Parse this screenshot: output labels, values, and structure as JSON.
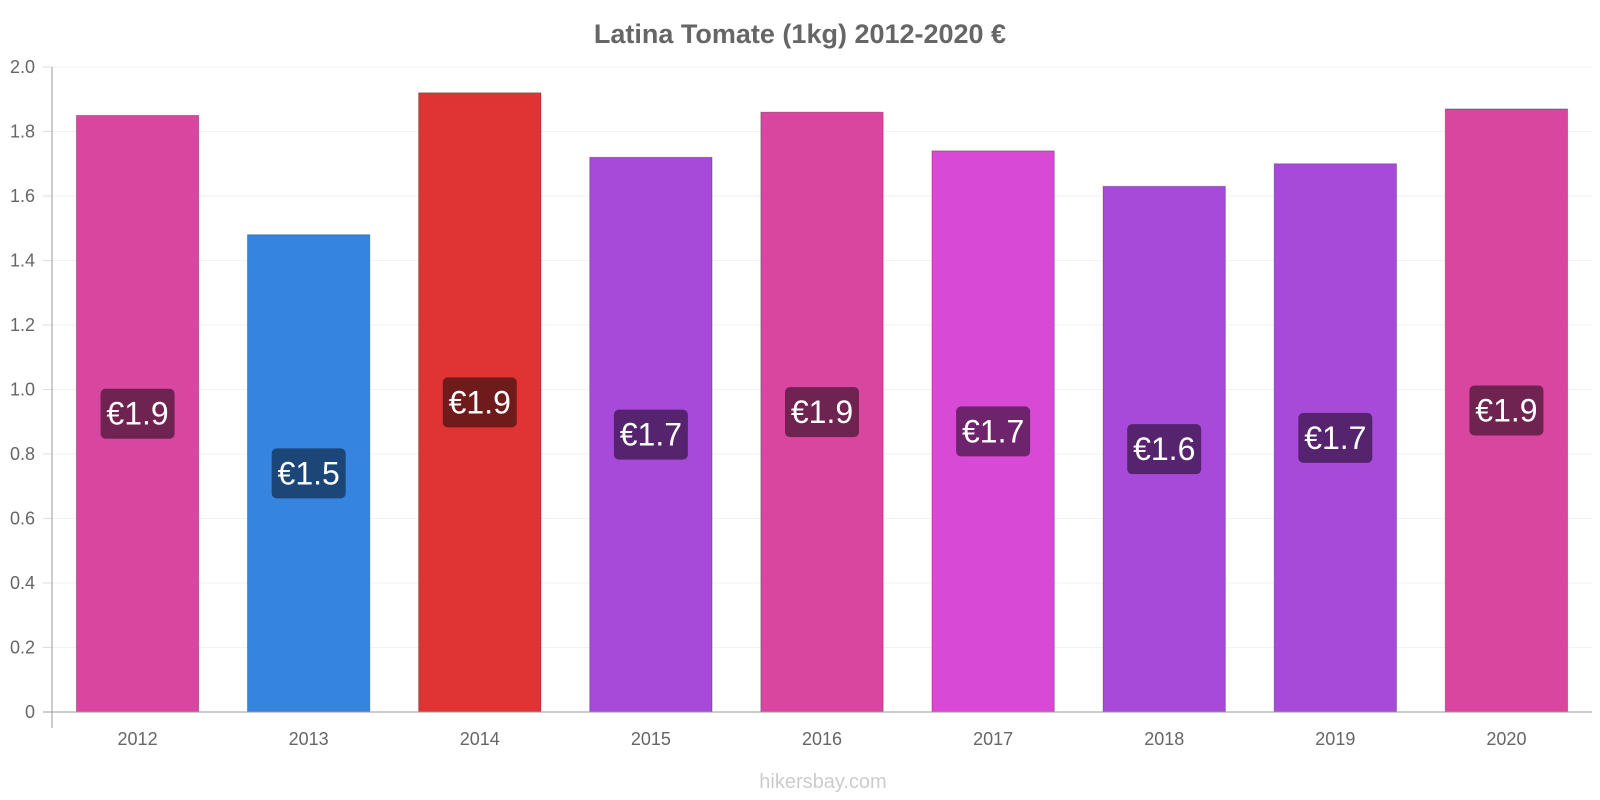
{
  "chart_data": {
    "type": "bar",
    "title": "Latina Tomate (1kg) 2012-2020 €",
    "xlabel": "",
    "ylabel": "",
    "categories": [
      "2012",
      "2013",
      "2014",
      "2015",
      "2016",
      "2017",
      "2018",
      "2019",
      "2020"
    ],
    "values": [
      1.85,
      1.48,
      1.92,
      1.72,
      1.86,
      1.74,
      1.63,
      1.7,
      1.87
    ],
    "data_labels": [
      "€1.9",
      "€1.5",
      "€1.9",
      "€1.7",
      "€1.9",
      "€1.7",
      "€1.6",
      "€1.7",
      "€1.9"
    ],
    "bar_colors": [
      "#d946a0",
      "#3584e0",
      "#e03434",
      "#a84ad9",
      "#d946a0",
      "#d84ad6",
      "#a84ad9",
      "#a84ad9",
      "#d946a0"
    ],
    "label_bg_colors": [
      "#6e2351",
      "#1c4677",
      "#701b1b",
      "#56246f",
      "#6e2351",
      "#6e246d",
      "#56246f",
      "#56246f",
      "#6e2351"
    ],
    "ylim": [
      0,
      2.0
    ],
    "yticks": [
      0,
      0.2,
      0.4,
      0.6,
      0.8,
      1.0,
      1.2,
      1.4,
      1.6,
      1.8,
      2.0
    ],
    "ytick_labels": [
      "0",
      "0.2",
      "0.4",
      "0.6",
      "0.8",
      "1.0",
      "1.2",
      "1.4",
      "1.6",
      "1.8",
      "2.0"
    ],
    "grid": true,
    "legend": "none"
  },
  "credit": "hikersbay.com"
}
